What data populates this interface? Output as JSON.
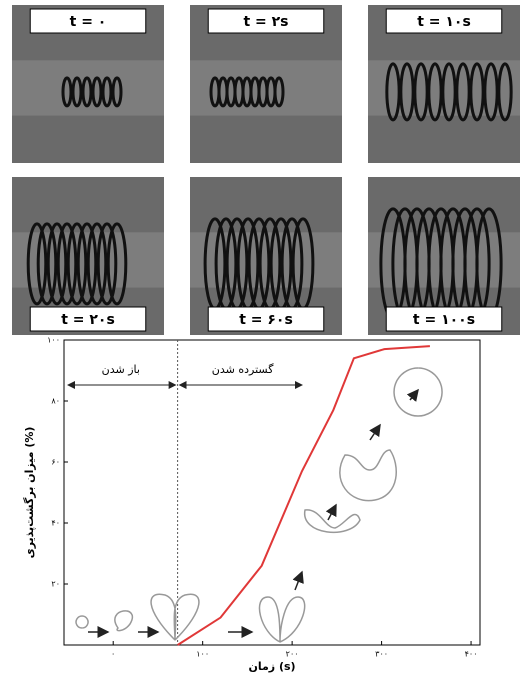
{
  "panels": [
    {
      "label": "t = ۰"
    },
    {
      "label": "t = ۲s"
    },
    {
      "label": "t = ۱۰s"
    },
    {
      "label": "t = ۲۰s"
    },
    {
      "label": "t = ۶۰s"
    },
    {
      "label": "t = ۱۰۰s"
    }
  ],
  "chart_data": {
    "type": "line",
    "x_label": "زمان (s)",
    "y_label": "میزان برگشت‌پذیری (%)",
    "annotations": [
      "باز شدن",
      "گسترده شدن"
    ],
    "phase_boundary_x": 72,
    "series": [
      {
        "color": "#e03838",
        "x": [
          72,
          120,
          166,
          211,
          246,
          269,
          303,
          354
        ],
        "values": [
          0,
          9,
          26,
          57,
          77,
          94,
          97,
          98
        ]
      }
    ],
    "xlim": [
      -55,
      410
    ],
    "ylim": [
      0,
      100
    ],
    "xticks": [
      {
        "value": 0,
        "label": "۰"
      },
      {
        "value": 100,
        "label": "۱۰۰"
      },
      {
        "value": 200,
        "label": "۲۰۰"
      },
      {
        "value": 300,
        "label": "۳۰۰"
      },
      {
        "value": 400,
        "label": "۴۰۰"
      }
    ],
    "yticks": [
      {
        "value": 20,
        "label": "۲۰"
      },
      {
        "value": 40,
        "label": "۴۰"
      },
      {
        "value": 60,
        "label": "۶۰"
      },
      {
        "value": 80,
        "label": "۸۰"
      },
      {
        "value": 100,
        "label": "۱۰۰"
      }
    ]
  }
}
